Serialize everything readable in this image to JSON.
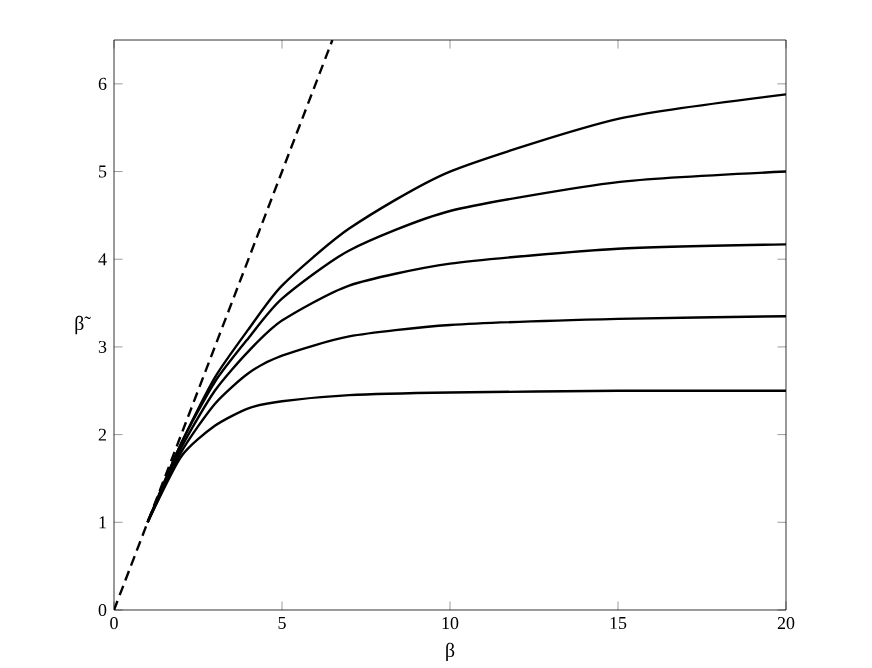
{
  "chart_data": {
    "type": "line",
    "xlabel": "β",
    "ylabel": "β̃",
    "xlim": [
      0,
      20
    ],
    "ylim": [
      0,
      6.5
    ],
    "xticks": [
      0,
      5,
      10,
      15,
      20
    ],
    "yticks": [
      0,
      1,
      2,
      3,
      4,
      5,
      6
    ],
    "grid": false,
    "marker": "none",
    "series": [
      {
        "color": "#000000",
        "line_style": "dashed",
        "x": [
          0,
          6.5
        ],
        "values": [
          0,
          6.5
        ]
      },
      {
        "color": "#000000",
        "line_style": "solid",
        "x": [
          1,
          2,
          3,
          4,
          5,
          7,
          10,
          15,
          20
        ],
        "values": [
          1,
          1.75,
          2.1,
          2.3,
          2.38,
          2.45,
          2.48,
          2.5,
          2.5
        ]
      },
      {
        "color": "#000000",
        "line_style": "solid",
        "x": [
          1,
          2,
          3,
          4,
          5,
          7,
          10,
          15,
          20
        ],
        "values": [
          1,
          1.8,
          2.35,
          2.7,
          2.9,
          3.12,
          3.25,
          3.32,
          3.35
        ]
      },
      {
        "color": "#000000",
        "line_style": "solid",
        "x": [
          1,
          2,
          3,
          4,
          5,
          7,
          10,
          15,
          20
        ],
        "values": [
          1,
          1.85,
          2.5,
          2.95,
          3.3,
          3.7,
          3.95,
          4.12,
          4.17
        ]
      },
      {
        "color": "#000000",
        "line_style": "solid",
        "x": [
          1,
          2,
          3,
          4,
          5,
          7,
          10,
          15,
          20
        ],
        "values": [
          1,
          1.9,
          2.6,
          3.1,
          3.55,
          4.1,
          4.55,
          4.88,
          5.0
        ]
      },
      {
        "color": "#000000",
        "line_style": "solid",
        "x": [
          1,
          2,
          3,
          4,
          5,
          7,
          10,
          15,
          20
        ],
        "values": [
          1,
          1.9,
          2.65,
          3.2,
          3.7,
          4.35,
          5.0,
          5.6,
          5.88
        ]
      }
    ]
  }
}
